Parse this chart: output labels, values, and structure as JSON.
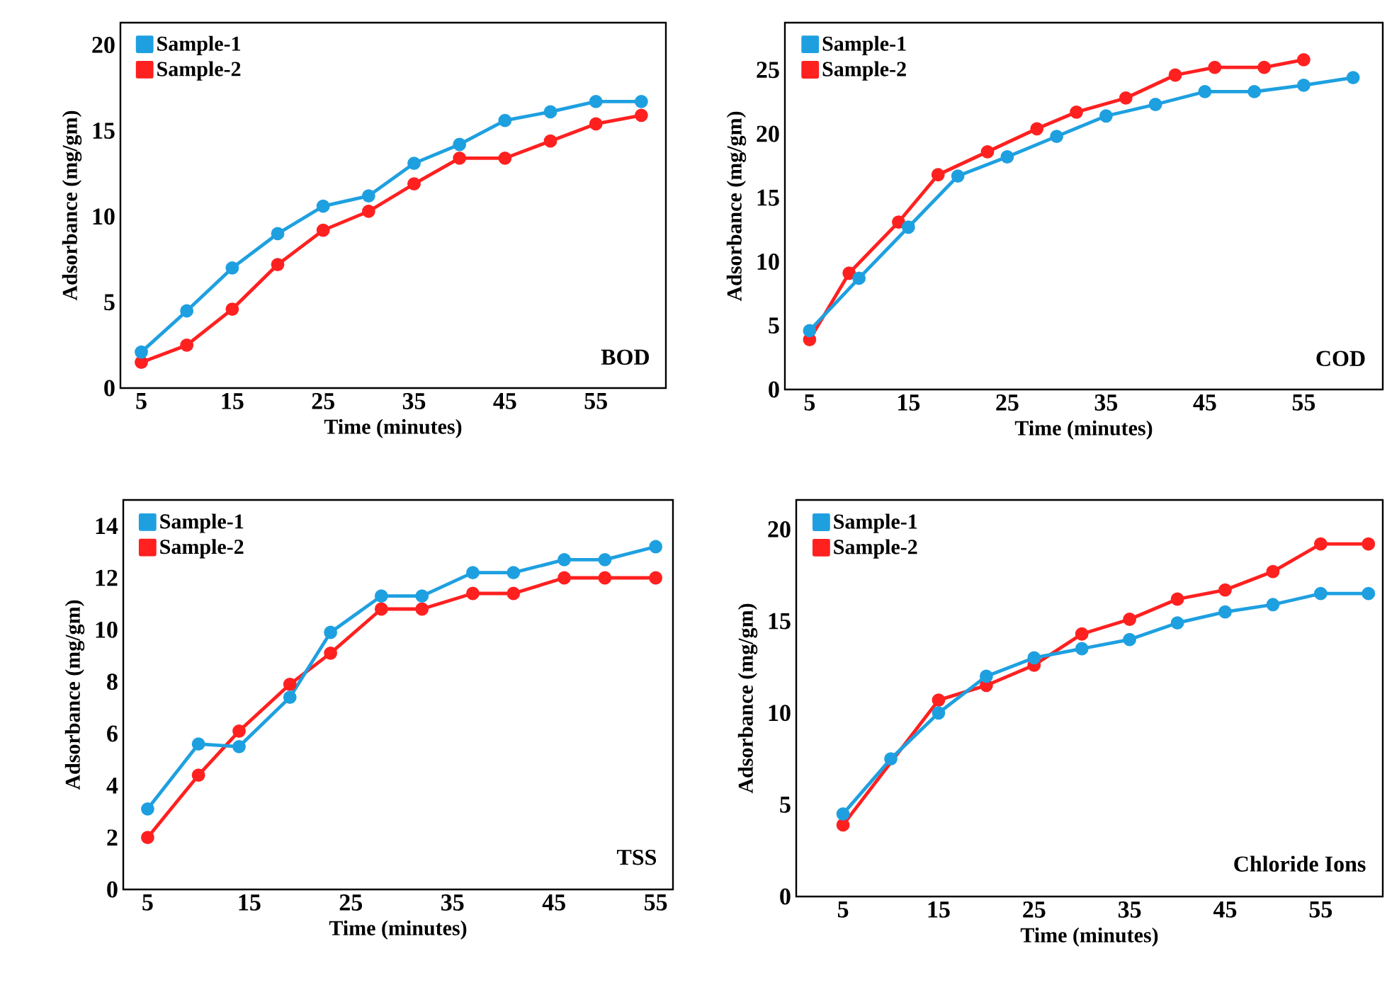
{
  "chart_data": [
    {
      "type": "line",
      "title": "BOD",
      "xlabel": "Time (minutes)",
      "ylabel": "Adsorbance (mg/gm)",
      "xlim": [
        2.7,
        62.7
      ],
      "ylim": [
        0,
        21.3
      ],
      "xticks": [
        5,
        15,
        25,
        35,
        45,
        55
      ],
      "yticks": [
        0,
        5,
        10,
        15,
        20
      ],
      "legend": "top left",
      "marker": "circle",
      "x": [
        5,
        10,
        15,
        20,
        25,
        30,
        35,
        40,
        45,
        50,
        55,
        60
      ],
      "series": [
        {
          "name": "Sample-1",
          "color": "#1ea0e0",
          "values": [
            2.1,
            4.5,
            7.0,
            9.0,
            10.6,
            11.2,
            13.1,
            14.2,
            15.6,
            16.1,
            16.7,
            16.7
          ]
        },
        {
          "name": "Sample-2",
          "color": "#ff2020",
          "values": [
            1.5,
            2.5,
            4.6,
            7.2,
            9.2,
            10.3,
            11.9,
            13.4,
            13.4,
            14.4,
            15.4,
            15.9
          ]
        }
      ]
    },
    {
      "type": "line",
      "title": "COD",
      "xlabel": "Time (minutes)",
      "ylabel": "Adsorbance (mg/gm)",
      "xlim": [
        2.5,
        63
      ],
      "ylim": [
        0,
        28.7
      ],
      "xticks": [
        5,
        15,
        25,
        35,
        45,
        55
      ],
      "yticks": [
        0,
        5,
        10,
        15,
        20,
        25
      ],
      "legend": "top left",
      "marker": "circle",
      "series": [
        {
          "name": "Sample-1",
          "color": "#1ea0e0",
          "x": [
            5,
            10,
            15,
            20,
            25,
            30,
            35,
            40,
            45,
            50,
            55,
            60
          ],
          "values": [
            4.6,
            8.7,
            12.7,
            16.7,
            18.2,
            19.8,
            21.4,
            22.3,
            23.3,
            23.3,
            23.8,
            24.4
          ]
        },
        {
          "name": "Sample-2",
          "color": "#ff2020",
          "x": [
            5,
            9,
            14,
            18,
            23,
            28,
            32,
            37,
            42,
            46,
            51,
            55
          ],
          "values": [
            3.9,
            9.1,
            13.1,
            16.8,
            18.6,
            20.4,
            21.7,
            22.8,
            24.6,
            25.2,
            25.2,
            25.8
          ]
        }
      ]
    },
    {
      "type": "line",
      "title": "TSS",
      "xlabel": "Time (minutes)",
      "ylabel": "Adsorbance (mg/gm)",
      "xlim": [
        2.6,
        56.7
      ],
      "ylim": [
        0,
        15
      ],
      "xticks": [
        5,
        15,
        25,
        35,
        45,
        55
      ],
      "yticks": [
        0,
        2,
        4,
        6,
        8,
        10,
        12,
        14
      ],
      "legend": "top left",
      "marker": "circle",
      "x": [
        5,
        10,
        14,
        19,
        23,
        28,
        32,
        37,
        41,
        46,
        50,
        55
      ],
      "series": [
        {
          "name": "Sample-1",
          "color": "#1ea0e0",
          "values": [
            3.1,
            5.6,
            5.5,
            7.4,
            9.9,
            11.3,
            11.3,
            12.2,
            12.2,
            12.7,
            12.7,
            13.2
          ]
        },
        {
          "name": "Sample-2",
          "color": "#ff2020",
          "values": [
            2.0,
            4.4,
            6.1,
            7.9,
            9.1,
            10.8,
            10.8,
            11.4,
            11.4,
            12.0,
            12.0,
            12.0
          ]
        }
      ]
    },
    {
      "type": "line",
      "title": "Chloride Ions",
      "xlabel": "Time (minutes)",
      "ylabel": "Adsorbance (mg/gm)",
      "xlim": [
        0.1,
        61.5
      ],
      "ylim": [
        0,
        21.6
      ],
      "xticks": [
        5,
        15,
        25,
        35,
        45,
        55
      ],
      "yticks": [
        0,
        5,
        10,
        15,
        20
      ],
      "legend": "top left",
      "marker": "circle",
      "x": [
        5,
        10,
        15,
        20,
        25,
        30,
        35,
        40,
        45,
        50,
        55,
        60
      ],
      "series": [
        {
          "name": "Sample-1",
          "color": "#1ea0e0",
          "values": [
            4.5,
            7.5,
            10.0,
            12.0,
            13.0,
            13.5,
            14.0,
            14.9,
            15.5,
            15.9,
            16.5,
            16.5
          ]
        },
        {
          "name": "Sample-2",
          "color": "#ff2020",
          "values": [
            3.9,
            null,
            10.7,
            11.5,
            12.6,
            14.3,
            15.1,
            16.2,
            16.7,
            17.7,
            19.2,
            19.2
          ]
        }
      ]
    }
  ]
}
